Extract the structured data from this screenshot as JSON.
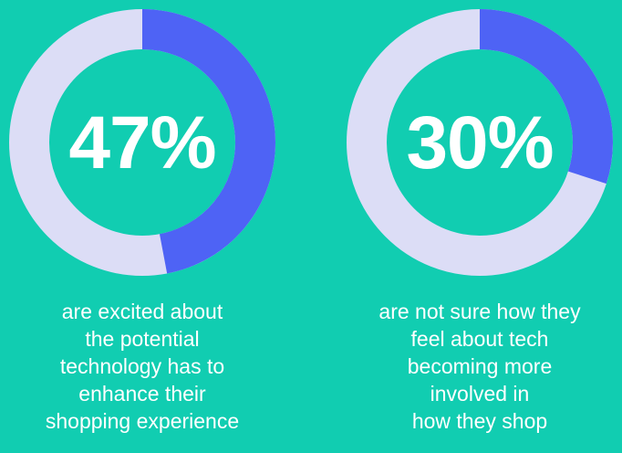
{
  "colors": {
    "background": "#11CDB1",
    "track": "#DCDDF6",
    "arc": "#4E63F5",
    "text": "#FFFFFF"
  },
  "chart_data": [
    {
      "type": "pie",
      "value": 47,
      "max": 100,
      "label": "47%",
      "caption": [
        "are excited about",
        "the potential",
        "technology has to",
        "enhance their",
        "shopping experience"
      ]
    },
    {
      "type": "pie",
      "value": 30,
      "max": 100,
      "label": "30%",
      "caption": [
        "are not sure how they",
        "feel about tech",
        "becoming more",
        "involved in",
        "how they shop"
      ]
    }
  ]
}
